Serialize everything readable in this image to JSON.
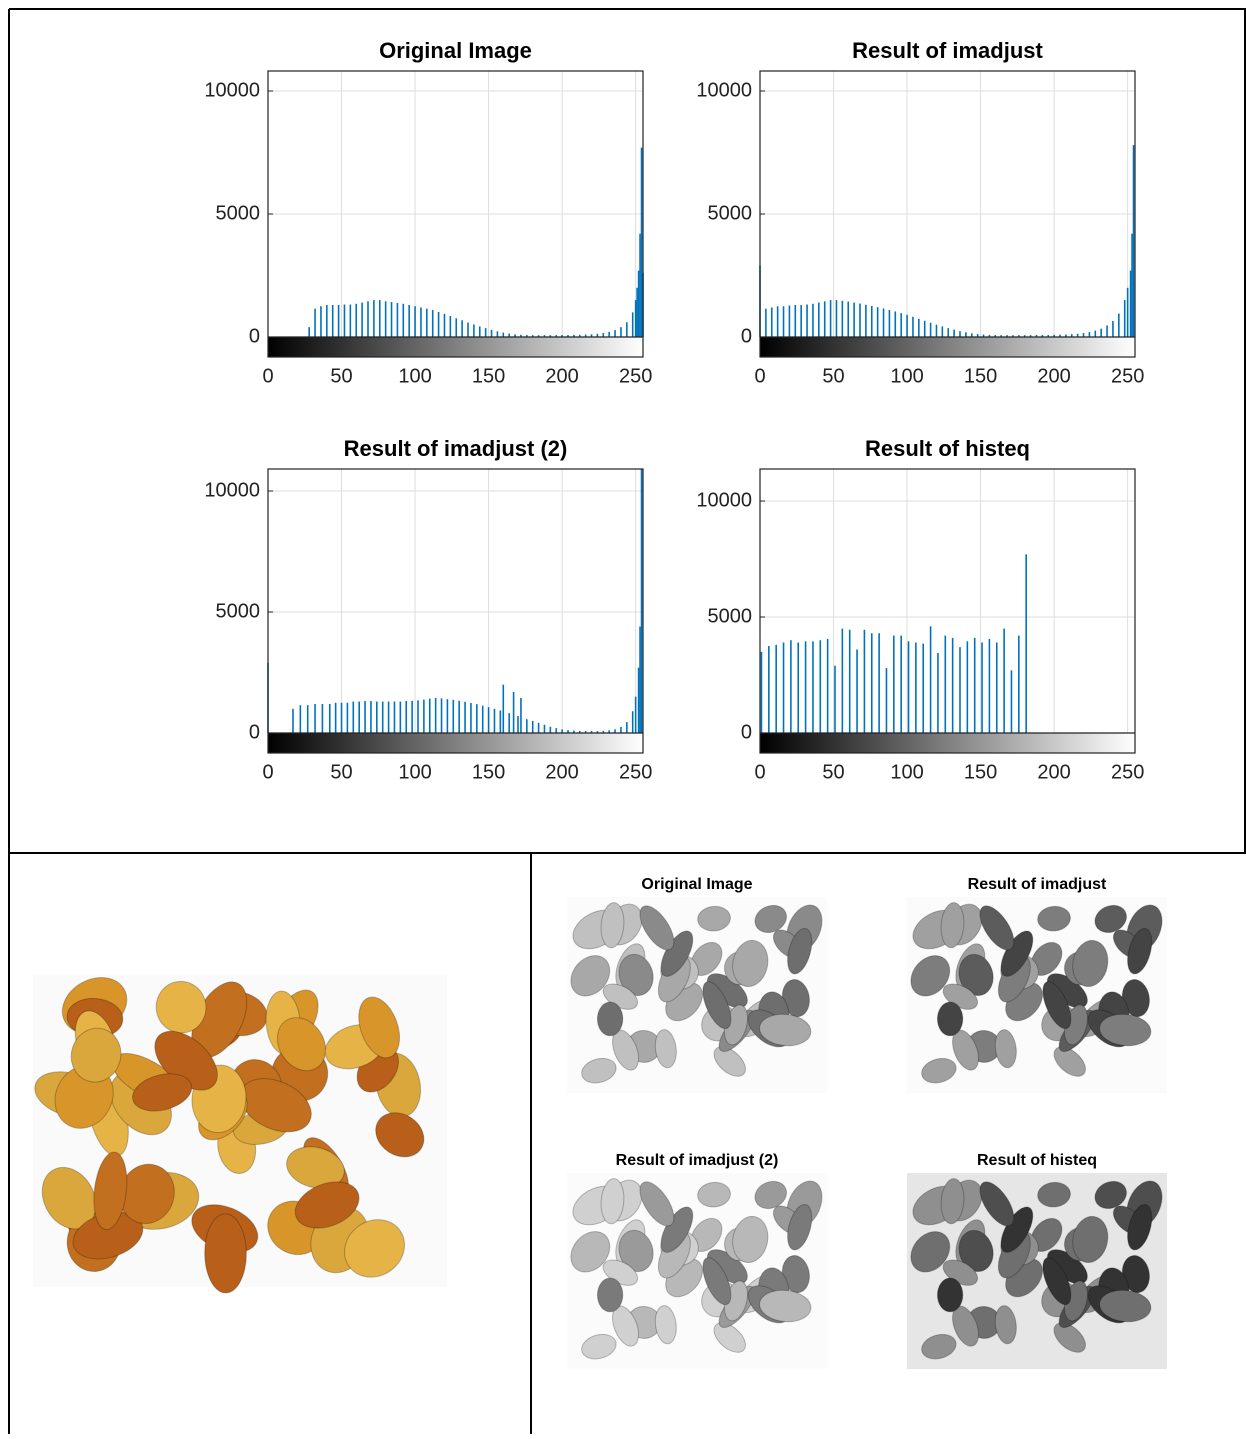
{
  "chart_data": [
    {
      "type": "stem",
      "title": "Original Image",
      "color": "#0072bd",
      "grid": true,
      "xlim": [
        0,
        255
      ],
      "xticks": [
        0,
        50,
        100,
        150,
        200,
        250
      ],
      "ylim": [
        -813,
        10813
      ],
      "yticks": [
        0,
        5000,
        10000
      ],
      "x": [
        28,
        32,
        36,
        40,
        44,
        48,
        52,
        56,
        60,
        64,
        68,
        72,
        76,
        80,
        84,
        88,
        92,
        96,
        100,
        104,
        108,
        112,
        116,
        120,
        124,
        128,
        132,
        136,
        140,
        144,
        148,
        152,
        156,
        160,
        164,
        168,
        172,
        176,
        180,
        184,
        188,
        192,
        196,
        200,
        204,
        208,
        212,
        216,
        220,
        224,
        228,
        232,
        236,
        240,
        244,
        248,
        250,
        251,
        252,
        253,
        254,
        255
      ],
      "values": [
        400,
        1150,
        1250,
        1300,
        1300,
        1300,
        1320,
        1320,
        1350,
        1400,
        1450,
        1500,
        1500,
        1450,
        1420,
        1380,
        1350,
        1300,
        1250,
        1200,
        1150,
        1100,
        1020,
        940,
        850,
        760,
        680,
        590,
        510,
        430,
        360,
        290,
        230,
        180,
        140,
        110,
        90,
        80,
        75,
        75,
        75,
        75,
        75,
        80,
        80,
        85,
        90,
        100,
        110,
        130,
        160,
        210,
        280,
        400,
        600,
        1000,
        1500,
        2000,
        2700,
        4200,
        7700,
        2600
      ]
    },
    {
      "type": "stem",
      "title": "Result of imadjust",
      "color": "#0072bd",
      "grid": true,
      "xlim": [
        0,
        255
      ],
      "xticks": [
        0,
        50,
        100,
        150,
        200,
        250
      ],
      "ylim": [
        -813,
        10813
      ],
      "yticks": [
        0,
        5000,
        10000
      ],
      "x": [
        0,
        4,
        8,
        12,
        16,
        20,
        24,
        28,
        32,
        36,
        40,
        44,
        48,
        52,
        56,
        60,
        64,
        68,
        72,
        76,
        80,
        84,
        88,
        92,
        96,
        100,
        104,
        108,
        112,
        116,
        120,
        124,
        128,
        132,
        136,
        140,
        144,
        148,
        152,
        156,
        160,
        164,
        168,
        172,
        176,
        180,
        184,
        188,
        192,
        196,
        200,
        204,
        208,
        212,
        216,
        220,
        224,
        228,
        232,
        236,
        240,
        244,
        248,
        250,
        252,
        253,
        254
      ],
      "values": [
        2900,
        1150,
        1200,
        1250,
        1250,
        1280,
        1300,
        1300,
        1320,
        1350,
        1400,
        1450,
        1500,
        1500,
        1470,
        1440,
        1400,
        1360,
        1310,
        1260,
        1210,
        1160,
        1100,
        1040,
        970,
        900,
        820,
        740,
        660,
        580,
        500,
        430,
        360,
        300,
        240,
        190,
        150,
        120,
        100,
        85,
        80,
        75,
        75,
        75,
        75,
        75,
        75,
        80,
        80,
        85,
        90,
        95,
        100,
        115,
        130,
        160,
        200,
        260,
        340,
        470,
        650,
        950,
        1500,
        2000,
        2700,
        4200,
        7800
      ]
    },
    {
      "type": "stem",
      "title": "Result of imadjust (2)",
      "color": "#0072bd",
      "grid": true,
      "xlim": [
        0,
        255
      ],
      "xticks": [
        0,
        50,
        100,
        150,
        200,
        250
      ],
      "ylim": [
        -826,
        10909
      ],
      "yticks": [
        0,
        5000,
        10000
      ],
      "x": [
        0,
        17,
        22,
        27,
        32,
        37,
        42,
        46,
        50,
        54,
        58,
        62,
        66,
        70,
        74,
        78,
        82,
        86,
        90,
        94,
        98,
        102,
        106,
        110,
        114,
        118,
        122,
        126,
        130,
        134,
        138,
        142,
        146,
        150,
        154,
        158,
        160,
        164,
        167,
        170,
        172,
        176,
        180,
        184,
        188,
        192,
        196,
        200,
        204,
        208,
        212,
        216,
        220,
        224,
        228,
        232,
        236,
        240,
        244,
        248,
        250,
        252,
        253,
        254
      ],
      "values": [
        2900,
        1000,
        1150,
        1150,
        1200,
        1200,
        1200,
        1250,
        1250,
        1250,
        1300,
        1300,
        1320,
        1320,
        1300,
        1300,
        1300,
        1300,
        1300,
        1320,
        1330,
        1350,
        1380,
        1420,
        1450,
        1430,
        1400,
        1370,
        1330,
        1290,
        1240,
        1190,
        1130,
        1070,
        1000,
        930,
        2000,
        820,
        1700,
        700,
        1450,
        570,
        500,
        420,
        340,
        260,
        200,
        150,
        120,
        100,
        90,
        80,
        80,
        80,
        90,
        110,
        150,
        250,
        450,
        900,
        1500,
        2700,
        4400,
        10900
      ]
    },
    {
      "type": "stem",
      "title": "Result of histeq",
      "color": "#0072bd",
      "grid": true,
      "xlim": [
        0,
        255
      ],
      "xticks": [
        0,
        50,
        100,
        150,
        200,
        250
      ],
      "ylim": [
        -862,
        11380
      ],
      "yticks": [
        0,
        5000,
        10000
      ],
      "x": [
        1,
        6,
        11,
        16,
        21,
        26,
        31,
        36,
        41,
        46,
        51,
        56,
        61,
        66,
        71,
        76,
        81,
        86,
        91,
        96,
        101,
        106,
        111,
        116,
        121,
        126,
        131,
        136,
        141,
        146,
        151,
        156,
        161,
        166,
        171,
        176,
        181
      ],
      "values": [
        3500,
        3750,
        3800,
        3900,
        4000,
        3900,
        3950,
        3950,
        4000,
        4050,
        2900,
        4500,
        4450,
        3600,
        4450,
        4300,
        4300,
        2800,
        4200,
        4200,
        3950,
        3900,
        3850,
        4600,
        3450,
        4200,
        4100,
        3700,
        3950,
        4100,
        3900,
        4050,
        3900,
        4500,
        2700,
        4200,
        7700
      ]
    }
  ],
  "image_panels": [
    {
      "title": "Original Image"
    },
    {
      "title": "Result of imadjust"
    },
    {
      "title": "Result of imadjust (2)"
    },
    {
      "title": "Result of histeq"
    }
  ]
}
